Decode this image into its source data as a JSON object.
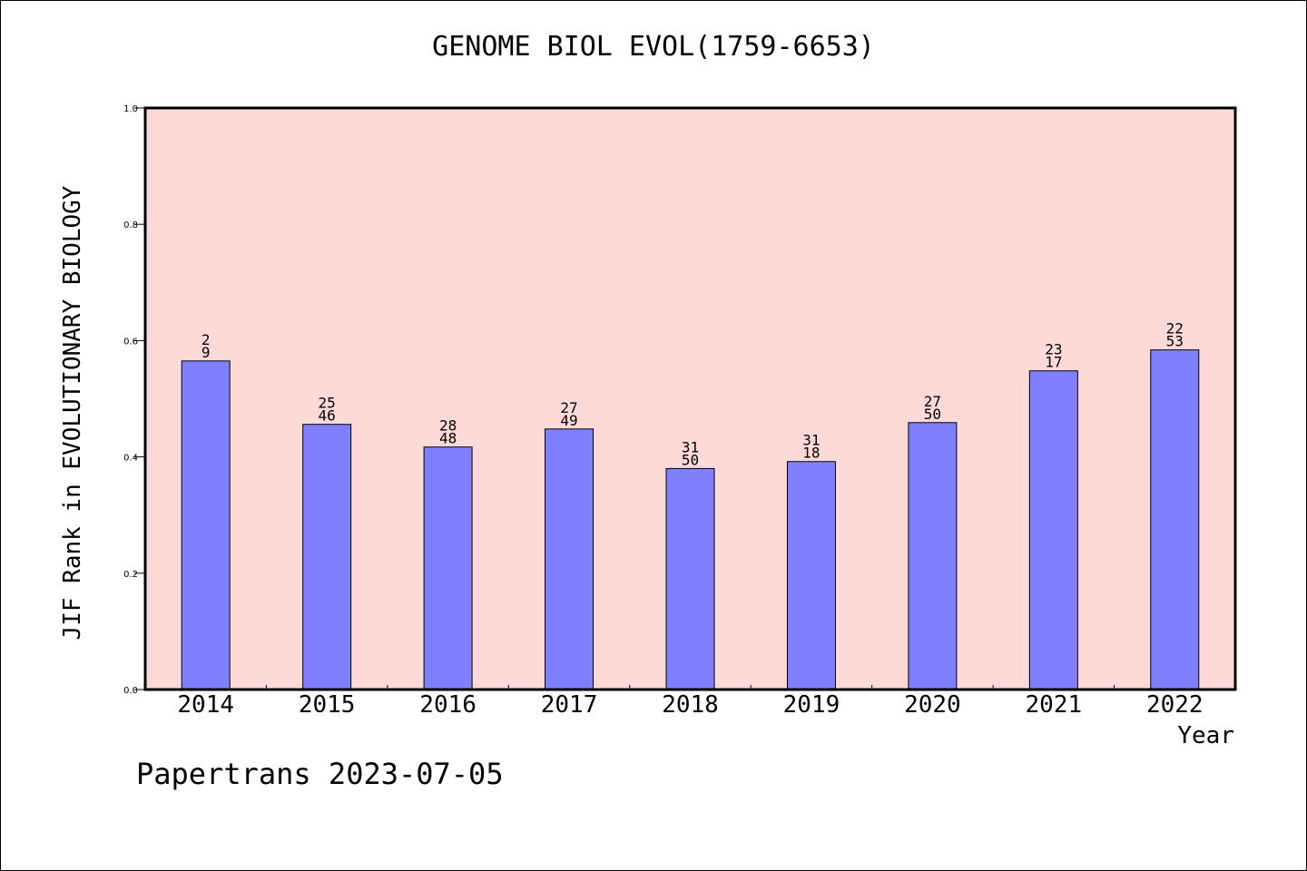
{
  "chart_data": {
    "type": "bar",
    "title": "GENOME BIOL EVOL(1759-6653)",
    "xlabel": "Year",
    "ylabel": "JIF Rank in EVOLUTIONARY BIOLOGY",
    "categories": [
      "2014",
      "2015",
      "2016",
      "2017",
      "2018",
      "2019",
      "2020",
      "2021",
      "2022"
    ],
    "values": [
      0.565,
      0.456,
      0.417,
      0.448,
      0.38,
      0.392,
      0.459,
      0.548,
      0.584
    ],
    "data_labels": [
      [
        "2",
        "9"
      ],
      [
        "25",
        "46"
      ],
      [
        "28",
        "48"
      ],
      [
        "27",
        "49"
      ],
      [
        "31",
        "50"
      ],
      [
        "31",
        "18"
      ],
      [
        "27",
        "50"
      ],
      [
        "23",
        "17"
      ],
      [
        "22",
        "53"
      ]
    ],
    "ylim": [
      0,
      1.0
    ],
    "yticks": [
      "0.0",
      "0.2",
      "0.4",
      "0.6",
      "0.8",
      "1.0"
    ],
    "grid": false,
    "colors": {
      "bar": "#8080ff",
      "plot_background": "#fddad7",
      "axis": "#000000"
    }
  },
  "footer": "Papertrans 2023-07-05"
}
